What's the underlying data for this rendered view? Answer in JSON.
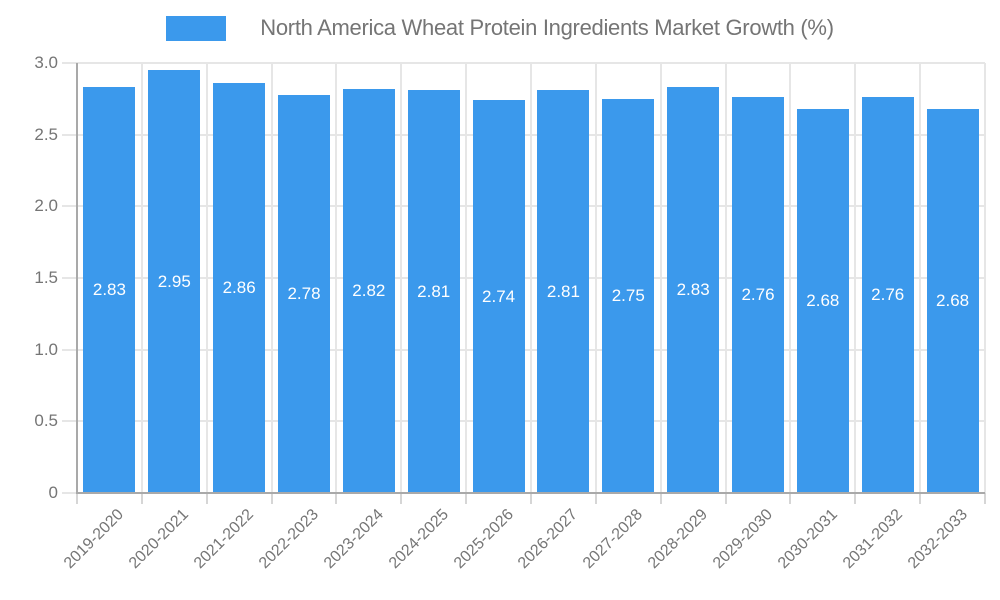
{
  "legend": {
    "label": "North America Wheat Protein Ingredients Market Growth (%)"
  },
  "chart_data": {
    "type": "bar",
    "title": "North America Wheat Protein Ingredients Market Growth (%)",
    "categories": [
      "2019-2020",
      "2020-2021",
      "2021-2022",
      "2022-2023",
      "2023-2024",
      "2024-2025",
      "2025-2026",
      "2026-2027",
      "2027-2028",
      "2028-2029",
      "2029-2030",
      "2030-2031",
      "2031-2032",
      "2032-2033"
    ],
    "values": [
      2.83,
      2.95,
      2.86,
      2.78,
      2.82,
      2.81,
      2.74,
      2.81,
      2.75,
      2.83,
      2.76,
      2.68,
      2.76,
      2.68
    ],
    "value_labels": [
      "2.83",
      "2.95",
      "2.86",
      "2.78",
      "2.82",
      "2.81",
      "2.74",
      "2.81",
      "2.75",
      "2.83",
      "2.76",
      "2.68",
      "2.76",
      "2.68"
    ],
    "xlabel": "",
    "ylabel": "",
    "ylim": [
      0,
      3
    ],
    "yticks": [
      {
        "value": 0,
        "label": "0"
      },
      {
        "value": 0.5,
        "label": "0.5"
      },
      {
        "value": 1,
        "label": "1.0"
      },
      {
        "value": 1.5,
        "label": "1.5"
      },
      {
        "value": 2,
        "label": "2.0"
      },
      {
        "value": 2.5,
        "label": "2.5"
      },
      {
        "value": 3,
        "label": "3.0"
      }
    ],
    "grid": true,
    "legend_position": "top",
    "colors": {
      "bar": "#3b99ec",
      "grid_line": "#e6e6e6",
      "axis_line": "#a9a9a9",
      "tick_stub": "#d6d6d6",
      "tick_text": "#757575",
      "value_text": "#ffffff",
      "background": "#ffffff"
    }
  }
}
